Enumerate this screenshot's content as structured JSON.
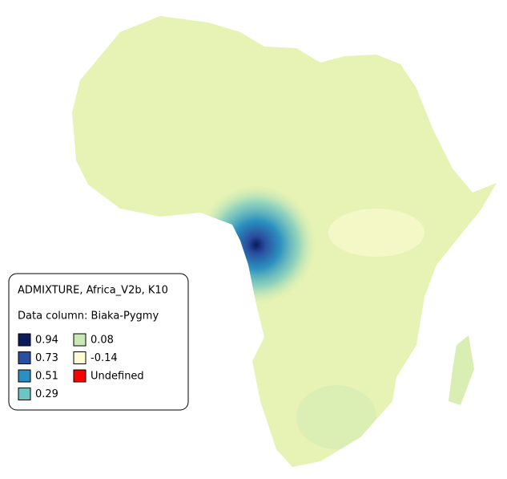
{
  "legend": {
    "title": "ADMIXTURE, Africa_V2b, K10",
    "data_column": "Data column: Biaka-Pygmy",
    "items": [
      {
        "label": "0.94",
        "color": "#0b1a5a"
      },
      {
        "label": "0.73",
        "color": "#2a4fa0"
      },
      {
        "label": "0.51",
        "color": "#2b90bf"
      },
      {
        "label": "0.29",
        "color": "#6cc5c0"
      },
      {
        "label": "0.08",
        "color": "#c9e9b4"
      },
      {
        "label": "-0.14",
        "color": "#fcfbd2"
      },
      {
        "label": "Undefined",
        "color": "#ff0000"
      }
    ]
  }
}
